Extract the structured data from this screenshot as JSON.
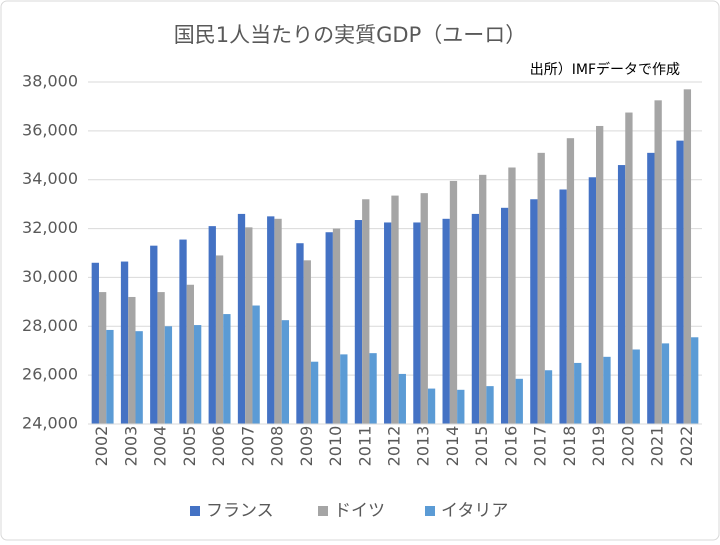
{
  "chart_data": {
    "type": "bar",
    "title": "国民1人当たりの実質GDP（ユーロ）",
    "annotation": "出所）IMFデータで作成",
    "categories": [
      "2002",
      "2003",
      "2004",
      "2005",
      "2006",
      "2007",
      "2008",
      "2009",
      "2010",
      "2011",
      "2012",
      "2013",
      "2014",
      "2015",
      "2016",
      "2017",
      "2018",
      "2019",
      "2020",
      "2021",
      "2022"
    ],
    "series": [
      {
        "name": "フランス",
        "color": "#4472c4",
        "values": [
          30600,
          30650,
          31300,
          31550,
          32100,
          32600,
          32500,
          31400,
          31850,
          32350,
          32250,
          32250,
          32400,
          32600,
          32850,
          33200,
          33600,
          34100,
          34600,
          35100,
          35600
        ]
      },
      {
        "name": "ドイツ",
        "color": "#a5a5a5",
        "values": [
          29400,
          29200,
          29400,
          29700,
          30900,
          32050,
          32400,
          30700,
          32000,
          33200,
          33350,
          33450,
          33950,
          34200,
          34500,
          35100,
          35700,
          36200,
          36750,
          37250,
          37700
        ]
      },
      {
        "name": "イタリア",
        "color": "#5b9bd5",
        "values": [
          27850,
          27800,
          28000,
          28050,
          28500,
          28850,
          28250,
          26550,
          26850,
          26900,
          26050,
          25450,
          25400,
          25550,
          25850,
          26200,
          26500,
          26750,
          27050,
          27300,
          27550
        ]
      }
    ],
    "ylim": [
      24000,
      38000
    ],
    "yticks": [
      {
        "value": 24000,
        "label": "24,000"
      },
      {
        "value": 26000,
        "label": "26,000"
      },
      {
        "value": 28000,
        "label": "28,000"
      },
      {
        "value": 30000,
        "label": "30,000"
      },
      {
        "value": 32000,
        "label": "32,000"
      },
      {
        "value": 34000,
        "label": "34,000"
      },
      {
        "value": 36000,
        "label": "36,000"
      },
      {
        "value": 38000,
        "label": "38,000"
      }
    ],
    "grid": true,
    "legend": "bottom"
  }
}
